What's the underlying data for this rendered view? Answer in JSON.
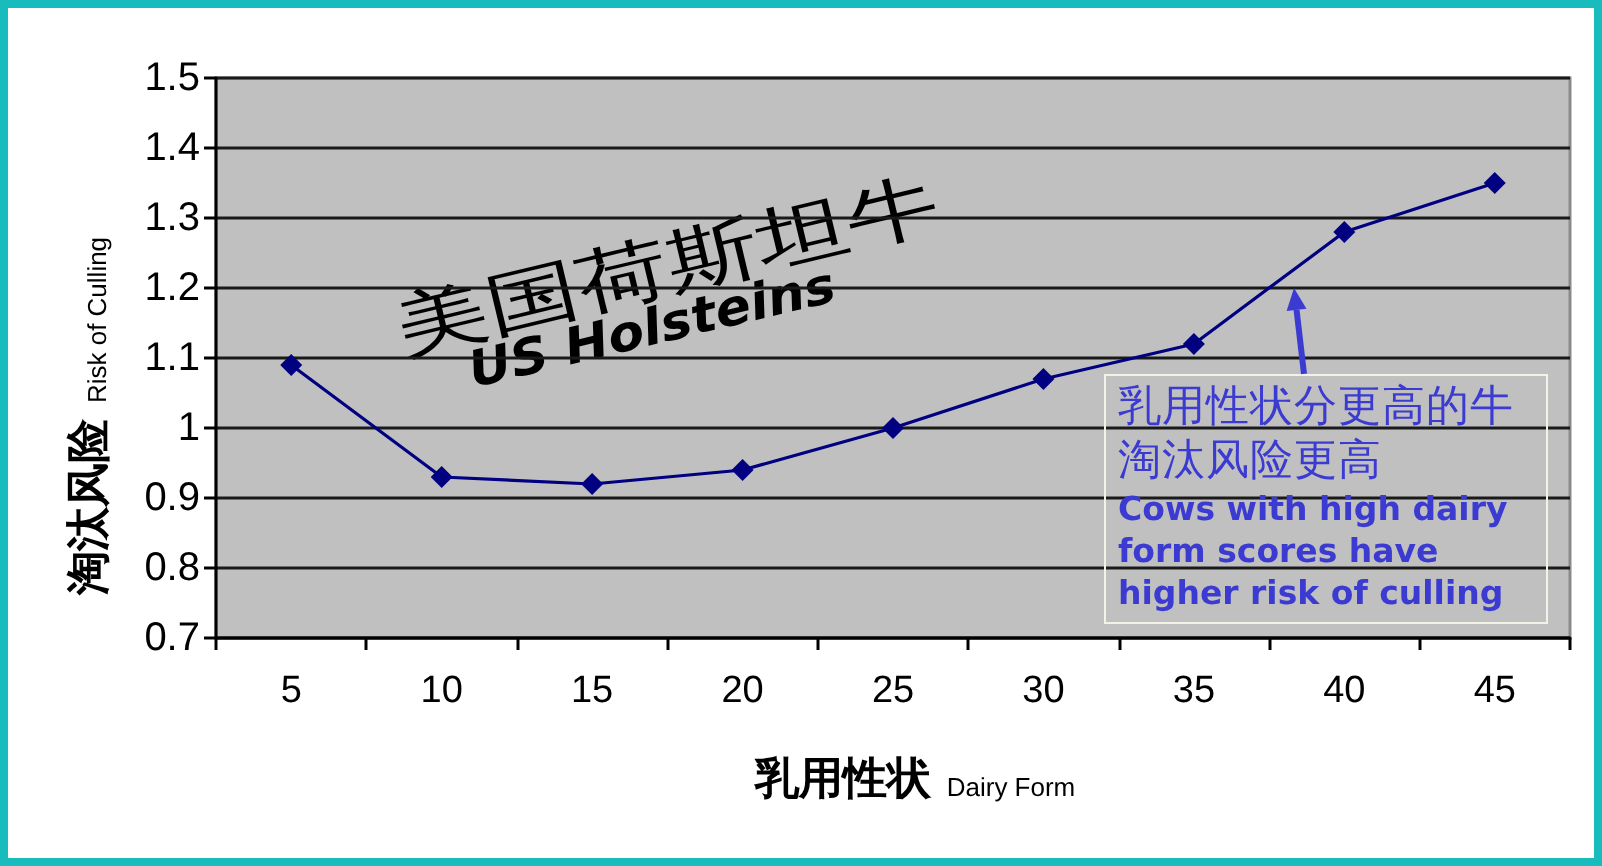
{
  "chart_data": {
    "type": "line",
    "title": "美国荷斯坦牛 US Holsteins",
    "xlabel": "乳用性状 Dairy Form",
    "ylabel": "淘汰风险 Risk of Culling",
    "categories": [
      "5",
      "10",
      "15",
      "20",
      "25",
      "30",
      "35",
      "40",
      "45"
    ],
    "values": [
      1.09,
      0.93,
      0.92,
      0.94,
      1.0,
      1.07,
      1.12,
      1.28,
      1.35
    ],
    "color": "#000080",
    "ylim": [
      0.7,
      1.5
    ],
    "yticks": [
      0.7,
      0.8,
      0.9,
      1,
      1.1,
      1.2,
      1.3,
      1.4,
      1.5
    ],
    "grid": "y",
    "marker": "diamond",
    "line_style": "solid",
    "annotations": [
      "乳用性状分更高的牛淘汰风险更高 Cows with high dairy form scores have higher risk of culling"
    ]
  }
}
